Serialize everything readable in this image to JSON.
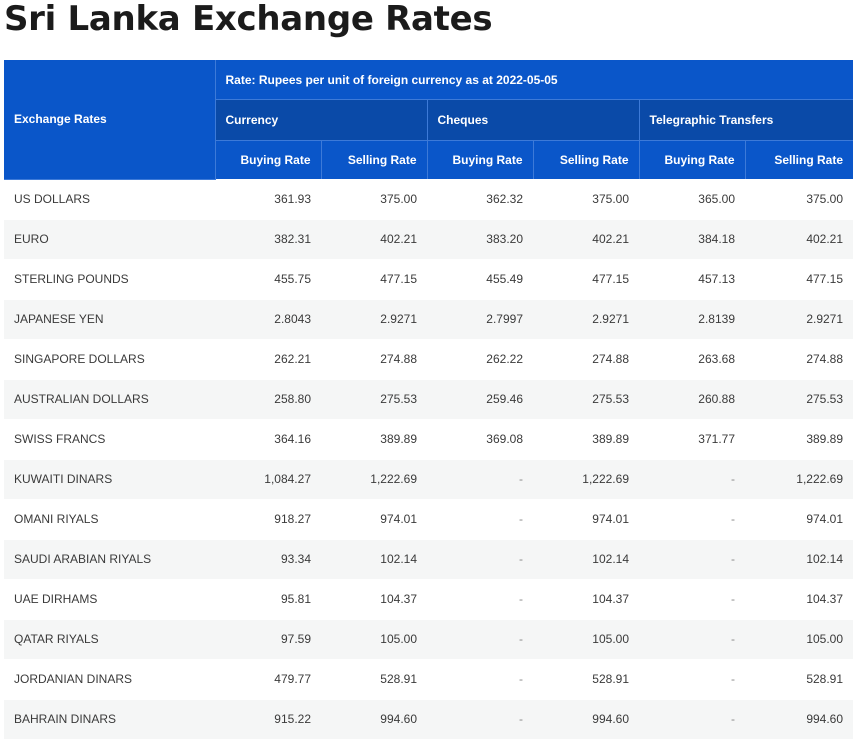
{
  "page": {
    "title": "Sri Lanka Exchange Rates"
  },
  "table": {
    "corner_label": "Exchange Rates",
    "rate_caption": "Rate: Rupees per unit of foreign currency as at 2022-05-05",
    "groups": [
      "Currency",
      "Cheques",
      "Telegraphic Transfers"
    ],
    "buying_label": "Buying Rate",
    "selling_label": "Selling Rate",
    "rows": [
      {
        "name": "US DOLLARS",
        "values": [
          "361.93",
          "375.00",
          "362.32",
          "375.00",
          "365.00",
          "375.00"
        ]
      },
      {
        "name": "EURO",
        "values": [
          "382.31",
          "402.21",
          "383.20",
          "402.21",
          "384.18",
          "402.21"
        ]
      },
      {
        "name": "STERLING POUNDS",
        "values": [
          "455.75",
          "477.15",
          "455.49",
          "477.15",
          "457.13",
          "477.15"
        ]
      },
      {
        "name": "JAPANESE YEN",
        "values": [
          "2.8043",
          "2.9271",
          "2.7997",
          "2.9271",
          "2.8139",
          "2.9271"
        ]
      },
      {
        "name": "SINGAPORE DOLLARS",
        "values": [
          "262.21",
          "274.88",
          "262.22",
          "274.88",
          "263.68",
          "274.88"
        ]
      },
      {
        "name": "AUSTRALIAN DOLLARS",
        "values": [
          "258.80",
          "275.53",
          "259.46",
          "275.53",
          "260.88",
          "275.53"
        ]
      },
      {
        "name": "SWISS FRANCS",
        "values": [
          "364.16",
          "389.89",
          "369.08",
          "389.89",
          "371.77",
          "389.89"
        ]
      },
      {
        "name": "KUWAITI DINARS",
        "values": [
          "1,084.27",
          "1,222.69",
          "-",
          "1,222.69",
          "-",
          "1,222.69"
        ]
      },
      {
        "name": "OMANI RIYALS",
        "values": [
          "918.27",
          "974.01",
          "-",
          "974.01",
          "-",
          "974.01"
        ]
      },
      {
        "name": "SAUDI ARABIAN RIYALS",
        "values": [
          "93.34",
          "102.14",
          "-",
          "102.14",
          "-",
          "102.14"
        ]
      },
      {
        "name": "UAE DIRHAMS",
        "values": [
          "95.81",
          "104.37",
          "-",
          "104.37",
          "-",
          "104.37"
        ]
      },
      {
        "name": "QATAR RIYALS",
        "values": [
          "97.59",
          "105.00",
          "-",
          "105.00",
          "-",
          "105.00"
        ]
      },
      {
        "name": "JORDANIAN DINARS",
        "values": [
          "479.77",
          "528.91",
          "-",
          "528.91",
          "-",
          "528.91"
        ]
      },
      {
        "name": "BAHRAIN DINARS",
        "values": [
          "915.22",
          "994.60",
          "-",
          "994.60",
          "-",
          "994.60"
        ]
      }
    ]
  },
  "colors": {
    "header_bg": "#0a56c9",
    "header_text": "#ffffff",
    "stripe": "#f5f6f6"
  }
}
